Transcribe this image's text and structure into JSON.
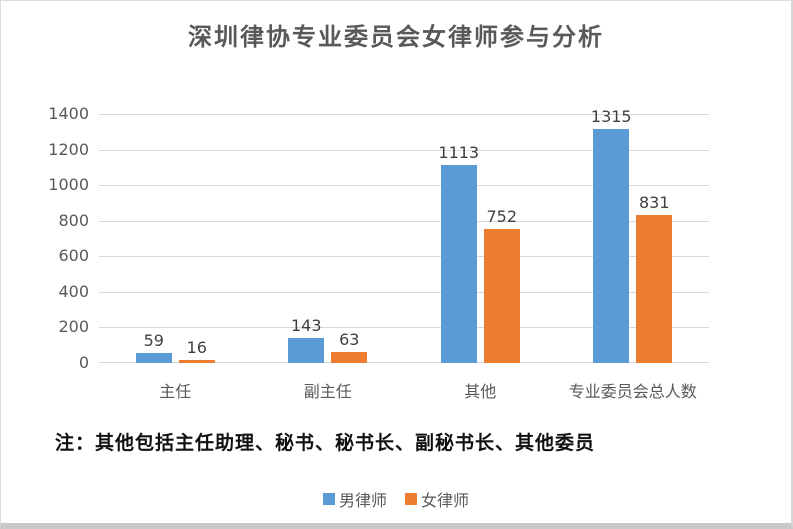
{
  "title": "深圳律协专业委员会女律师参与分析",
  "note": "注：其他包括主任助理、秘书、秘书长、副秘书长、其他委员",
  "colors": {
    "series_male": "#5B9BD5",
    "series_female": "#ED7D31",
    "gridline": "#D9D9D9",
    "axis_text": "#595959",
    "value_label_text": "#404040",
    "title_text": "#595959",
    "note_text": "#111111"
  },
  "chart_data": {
    "type": "bar",
    "title": "深圳律协专业委员会女律师参与分析",
    "categories": [
      "主任",
      "副主任",
      "其他",
      "专业委员会总人数"
    ],
    "series": [
      {
        "name": "男律师",
        "color": "#5B9BD5",
        "values": [
          59,
          143,
          1113,
          1315
        ]
      },
      {
        "name": "女律师",
        "color": "#ED7D31",
        "values": [
          16,
          63,
          752,
          831
        ]
      }
    ],
    "xlabel": "",
    "ylabel": "",
    "ylim": [
      0,
      1400
    ],
    "ytick_step": 200,
    "grid": true,
    "data_labels": true,
    "legend_position": "bottom",
    "annotation": "注：其他包括主任助理、秘书、秘书长、副秘书长、其他委员"
  }
}
